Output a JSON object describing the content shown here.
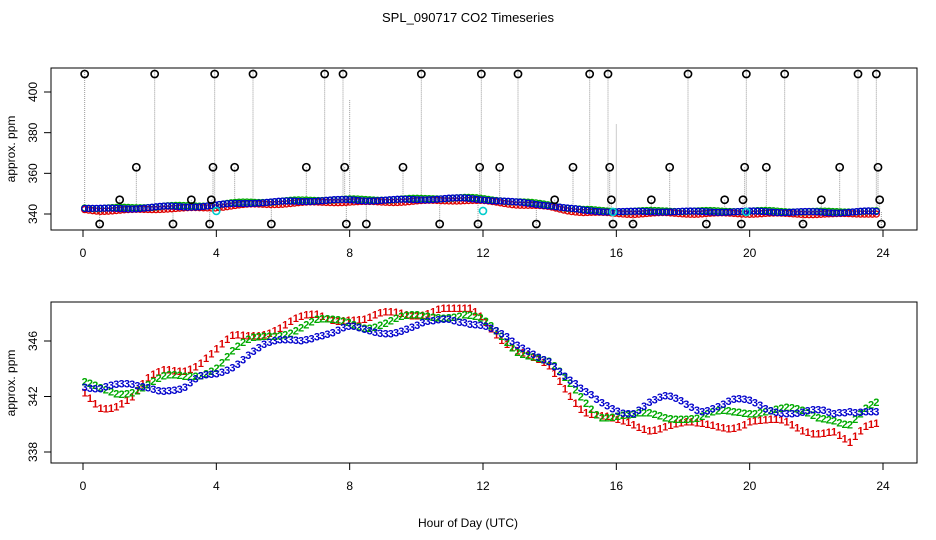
{
  "title": "SPL_090717  CO2 Timeseries",
  "xlabel": "Hour of Day (UTC)",
  "colors": {
    "series1": "#dd0000",
    "series2": "#00aa00",
    "series3": "#0000cc",
    "reference": "#00cccc",
    "circles": "#000000",
    "spikes": "#9a9a9a"
  },
  "chart_data": [
    {
      "type": "scatter",
      "name": "top-panel",
      "ylabel": "approx. ppm",
      "xlim": [
        0,
        24
      ],
      "ylim": [
        328,
        414
      ],
      "xticks": [
        0,
        4,
        8,
        12,
        16,
        20,
        24
      ],
      "yticks": [
        340,
        360,
        380,
        400
      ],
      "ytick_labels": [
        "340",
        "360",
        "380",
        "400"
      ],
      "profile": {
        "x": [
          0,
          0.5,
          1,
          1.5,
          2,
          2.5,
          3,
          3.5,
          4,
          4.5,
          5,
          5.5,
          6,
          6.5,
          7,
          7.5,
          8,
          8.5,
          9,
          9.5,
          10,
          10.5,
          11,
          11.5,
          12,
          12.5,
          13,
          13.5,
          14,
          14.5,
          15,
          15.5,
          16,
          16.5,
          17,
          17.5,
          18,
          18.5,
          19,
          19.5,
          20,
          20.5,
          21,
          21.5,
          22,
          22.5,
          23,
          23.5,
          23.8
        ],
        "y": [
          343,
          342.5,
          342.6,
          342.8,
          343.2,
          343.6,
          343.6,
          343.8,
          344.2,
          345,
          345.5,
          345.7,
          346,
          346.3,
          346.6,
          346.8,
          346.8,
          346.7,
          346.8,
          346.9,
          347.1,
          347.4,
          347.6,
          347.6,
          347.2,
          346.5,
          345.6,
          345,
          344.3,
          342.8,
          341.7,
          341.4,
          341.2,
          341,
          341.1,
          341.3,
          341.2,
          341,
          341.1,
          341.2,
          341.1,
          341.1,
          341,
          341,
          340.8,
          340.7,
          341,
          341.2,
          341
        ]
      },
      "spikes": [
        {
          "x": 0.05,
          "top": 414,
          "circle": 414
        },
        {
          "x": 0.5,
          "top": 333,
          "circle": 333
        },
        {
          "x": 1.1,
          "top": 347,
          "circle": 347
        },
        {
          "x": 1.6,
          "top": 363,
          "circle": 363
        },
        {
          "x": 2.15,
          "top": 411,
          "circle": 411
        },
        {
          "x": 2.7,
          "top": 333,
          "circle": 333
        },
        {
          "x": 3.25,
          "top": 347,
          "circle": 347
        },
        {
          "x": 3.8,
          "top": 333,
          "circle": 333
        },
        {
          "x": 3.9,
          "top": 363,
          "circle": 363
        },
        {
          "x": 3.95,
          "top": 411,
          "circle": 411
        },
        {
          "x": 3.85,
          "top": 347,
          "circle": 347
        },
        {
          "x": 4.55,
          "top": 363,
          "circle": 363
        },
        {
          "x": 5.1,
          "top": 411,
          "circle": 411
        },
        {
          "x": 5.65,
          "top": 333,
          "circle": 333
        },
        {
          "x": 6.7,
          "top": 363,
          "circle": 363
        },
        {
          "x": 7.25,
          "top": 411,
          "circle": 411
        },
        {
          "x": 7.8,
          "top": 411,
          "circle": 411
        },
        {
          "x": 7.85,
          "top": 363,
          "circle": 363
        },
        {
          "x": 7.9,
          "top": 333,
          "circle": 333
        },
        {
          "x": 8.0,
          "top": 396,
          "circle": null
        },
        {
          "x": 8.5,
          "top": 333,
          "circle": 333
        },
        {
          "x": 9.6,
          "top": 363,
          "circle": 363
        },
        {
          "x": 10.15,
          "top": 411,
          "circle": 411
        },
        {
          "x": 10.7,
          "top": 333,
          "circle": 333
        },
        {
          "x": 11.85,
          "top": 333,
          "circle": 333
        },
        {
          "x": 11.9,
          "top": 363,
          "circle": 363
        },
        {
          "x": 11.95,
          "top": 411,
          "circle": 411
        },
        {
          "x": 12.5,
          "top": 363,
          "circle": 363
        },
        {
          "x": 13.05,
          "top": 411,
          "circle": 411
        },
        {
          "x": 13.6,
          "top": 333,
          "circle": 333
        },
        {
          "x": 14.15,
          "top": 347,
          "circle": 347
        },
        {
          "x": 14.7,
          "top": 363,
          "circle": 363
        },
        {
          "x": 15.2,
          "top": 411,
          "circle": 411
        },
        {
          "x": 15.75,
          "top": 411,
          "circle": 411
        },
        {
          "x": 15.8,
          "top": 363,
          "circle": 363
        },
        {
          "x": 15.85,
          "top": 347,
          "circle": 347
        },
        {
          "x": 15.9,
          "top": 333,
          "circle": 333
        },
        {
          "x": 16.0,
          "top": 384,
          "circle": null
        },
        {
          "x": 16.5,
          "top": 333,
          "circle": 333
        },
        {
          "x": 17.05,
          "top": 347,
          "circle": 347
        },
        {
          "x": 17.6,
          "top": 363,
          "circle": 363
        },
        {
          "x": 18.15,
          "top": 411,
          "circle": 411
        },
        {
          "x": 18.7,
          "top": 333,
          "circle": 333
        },
        {
          "x": 19.25,
          "top": 347,
          "circle": 347
        },
        {
          "x": 19.75,
          "top": 333,
          "circle": 333
        },
        {
          "x": 19.8,
          "top": 347,
          "circle": 347
        },
        {
          "x": 19.85,
          "top": 363,
          "circle": 363
        },
        {
          "x": 19.9,
          "top": 411,
          "circle": 411
        },
        {
          "x": 20.5,
          "top": 363,
          "circle": 363
        },
        {
          "x": 21.05,
          "top": 411,
          "circle": 411
        },
        {
          "x": 21.6,
          "top": 333,
          "circle": 333
        },
        {
          "x": 22.15,
          "top": 347,
          "circle": 347
        },
        {
          "x": 22.7,
          "top": 363,
          "circle": 363
        },
        {
          "x": 23.25,
          "top": 411,
          "circle": 411
        },
        {
          "x": 23.8,
          "top": 411,
          "circle": 411
        },
        {
          "x": 23.85,
          "top": 363,
          "circle": 363
        },
        {
          "x": 23.9,
          "top": 347,
          "circle": 347
        },
        {
          "x": 23.95,
          "top": 333,
          "circle": 333
        }
      ],
      "reference_points": [
        {
          "x": 4.0,
          "y": 341.5
        },
        {
          "x": 12.0,
          "y": 341.5
        },
        {
          "x": 15.9,
          "y": 341
        },
        {
          "x": 19.9,
          "y": 341
        }
      ]
    },
    {
      "type": "scatter",
      "name": "bottom-panel",
      "ylabel": "approx. ppm",
      "xlim": [
        0,
        24
      ],
      "ylim": [
        337,
        349
      ],
      "xticks": [
        0,
        4,
        8,
        12,
        16,
        20,
        24
      ],
      "yticks": [
        338,
        342,
        346
      ],
      "ytick_labels": [
        "338",
        "342",
        "346"
      ],
      "series": [
        {
          "name": "1",
          "glyph": "1",
          "color_key": "series1",
          "x": [
            0,
            0.5,
            1,
            1.5,
            2,
            2.5,
            3,
            3.5,
            4,
            4.5,
            5,
            5.5,
            6,
            6.5,
            7,
            7.5,
            8,
            8.5,
            9,
            9.5,
            10,
            10.5,
            11,
            11.5,
            12,
            12.5,
            13,
            13.5,
            14,
            14.5,
            15,
            15.5,
            16,
            16.5,
            17,
            17.5,
            18,
            18.5,
            19,
            19.5,
            20,
            20.5,
            21,
            21.5,
            22,
            22.5,
            23,
            23.5,
            23.8
          ],
          "y": [
            342.3,
            341.4,
            341.5,
            341.9,
            343.2,
            344,
            344.1,
            344.5,
            345.2,
            346.2,
            346.5,
            346.8,
            347.1,
            347.5,
            347.8,
            347.7,
            347.8,
            347.5,
            347.8,
            348,
            348.1,
            348.3,
            348.5,
            348.4,
            347.7,
            346.5,
            345.4,
            344.6,
            344,
            342.6,
            341.2,
            340.6,
            340.1,
            339.9,
            339.8,
            340.1,
            340,
            339.8,
            339.9,
            340,
            340.3,
            340.1,
            340.1,
            339.8,
            339.6,
            339.5,
            338.4,
            339.8,
            340.2
          ]
        },
        {
          "name": "2",
          "glyph": "2",
          "color_key": "series2",
          "x": [
            0,
            0.5,
            1,
            1.5,
            2,
            2.5,
            3,
            3.5,
            4,
            4.5,
            5,
            5.5,
            6,
            6.5,
            7,
            7.5,
            8,
            8.5,
            9,
            9.5,
            10,
            10.5,
            11,
            11.5,
            12,
            12.5,
            13,
            13.5,
            14,
            14.5,
            15,
            15.5,
            16,
            16.5,
            17,
            17.5,
            18,
            18.5,
            19,
            19.5,
            20,
            20.5,
            21,
            21.5,
            22,
            22.5,
            23,
            23.5,
            23.8
          ],
          "y": [
            342.9,
            342.4,
            342.3,
            342.6,
            343,
            343.3,
            343.3,
            343.7,
            344.3,
            345.3,
            345.9,
            346.3,
            346.7,
            347.1,
            347.4,
            347.3,
            347.4,
            347.2,
            347.3,
            347.5,
            347.7,
            347.9,
            348,
            347.9,
            347.3,
            346.4,
            345.5,
            345.1,
            344.4,
            343,
            341.8,
            340.8,
            340.7,
            340.5,
            340.6,
            340.6,
            340.7,
            340.5,
            340.7,
            340.8,
            341,
            341.2,
            341.1,
            340.8,
            340.5,
            340.6,
            340.1,
            341,
            341.3
          ]
        },
        {
          "name": "3",
          "glyph": "3",
          "color_key": "series3",
          "x": [
            0,
            0.5,
            1,
            1.5,
            2,
            2.5,
            3,
            3.5,
            4,
            4.5,
            5,
            5.5,
            6,
            6.5,
            7,
            7.5,
            8,
            8.5,
            9,
            9.5,
            10,
            10.5,
            11,
            11.5,
            12,
            12.5,
            13,
            13.5,
            14,
            14.5,
            15,
            15.5,
            16,
            16.5,
            17,
            17.5,
            18,
            18.5,
            19,
            19.5,
            20,
            20.5,
            21,
            21.5,
            22,
            22.5,
            23,
            23.5,
            23.8
          ],
          "y": [
            343,
            342.5,
            342.6,
            342.8,
            342.9,
            342.6,
            342.4,
            343.2,
            343.7,
            344.4,
            345.2,
            345.6,
            345.9,
            346.2,
            346.6,
            346.6,
            346.8,
            346.7,
            346.8,
            346.9,
            347,
            347.2,
            347.6,
            347.6,
            347.3,
            346.4,
            345.5,
            345.2,
            344.8,
            343.4,
            342.2,
            341.5,
            341.2,
            341,
            341.5,
            341.8,
            341.6,
            341.2,
            341.4,
            341.6,
            341.5,
            341.2,
            341.1,
            340.9,
            340.8,
            340.6,
            341.1,
            341.2,
            341
          ]
        }
      ]
    }
  ]
}
